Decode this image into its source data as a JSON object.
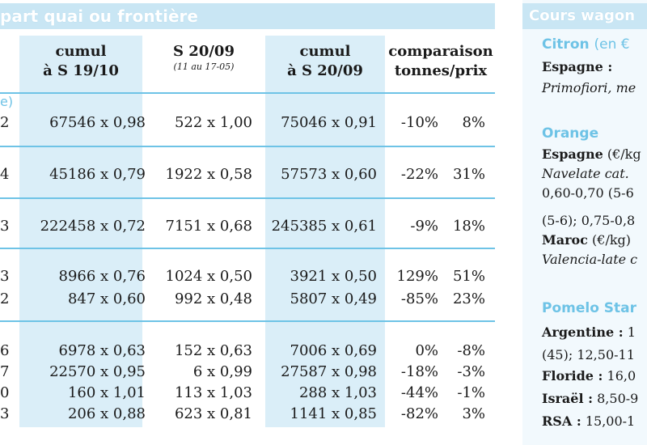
{
  "left": {
    "title": "part quai ou frontière",
    "headers": {
      "c1": [
        "cumul",
        "à S 19/10"
      ],
      "c2": [
        "S 20/09",
        "(11 au 17-05)"
      ],
      "c3": [
        "cumul",
        "à S 20/09"
      ],
      "c4": [
        "comparaison",
        "tonnes/prix"
      ]
    },
    "edge_label": "e)",
    "rows": [
      {
        "edge": "2",
        "c1": "67546 x 0,98",
        "c2": "522 x 1,00",
        "c3": "75046 x 0,91",
        "c4": "-10%",
        "c5": "8%"
      },
      {
        "edge": "4",
        "c1": "45186 x 0,79",
        "c2": "1922 x 0,58",
        "c3": "57573 x 0,60",
        "c4": "-22%",
        "c5": "31%"
      },
      {
        "edge": "3",
        "c1": "222458 x 0,72",
        "c2": "7151 x 0,68",
        "c3": "245385 x 0,61",
        "c4": "-9%",
        "c5": "18%"
      },
      {
        "edge": "3",
        "c1": "8966 x 0,76",
        "c2": "1024 x 0,50",
        "c3": "3921 x 0,50",
        "c4": "129%",
        "c5": "51%"
      },
      {
        "edge": "2",
        "c1": "847 x 0,60",
        "c2": "992 x 0,48",
        "c3": "5807 x 0,49",
        "c4": "-85%",
        "c5": "23%"
      },
      {
        "edge": "6",
        "c1": "6978 x 0,63",
        "c2": "152 x 0,63",
        "c3": "7006 x 0,69",
        "c4": "0%",
        "c5": "-8%"
      },
      {
        "edge": "7",
        "c1": "22570 x 0,95",
        "c2": "6 x 0,99",
        "c3": "27587 x 0,98",
        "c4": "-18%",
        "c5": "-3%"
      },
      {
        "edge": "0",
        "c1": "160 x 1,01",
        "c2": "113 x 1,03",
        "c3": "288 x 1,03",
        "c4": "-44%",
        "c5": "-1%"
      },
      {
        "edge": "3",
        "c1": "206 x 0,88",
        "c2": "623 x 0,81",
        "c3": "1141 x 0,85",
        "c4": "-82%",
        "c5": "3%"
      }
    ]
  },
  "right": {
    "title": "Cours wagon",
    "citron": {
      "name": "Citron",
      "unit": "(en €",
      "country": "Espagne :",
      "variety": "Primofiori, me"
    },
    "orange": {
      "name": "Orange",
      "country": "Espagne",
      "country_unit": "(€/kg",
      "line1": "Navelate cat.",
      "line2": "0,60-0,70 (5-6",
      "line3": "(5-6); 0,75-0,8",
      "country2": "Maroc",
      "country2_unit": "(€/kg)",
      "line4": "Valencia-late c"
    },
    "pomelo": {
      "name": "Pomelo Star",
      "l1_bold": "Argentine :",
      "l1": " 1",
      "l2": "(45); 12,50-11",
      "l3_bold": "Floride :",
      "l3": " 16,0",
      "l4_bold": "Israël :",
      "l4": " 8,50-9",
      "l5_bold": "RSA :",
      "l5": " 15,00-1"
    }
  }
}
